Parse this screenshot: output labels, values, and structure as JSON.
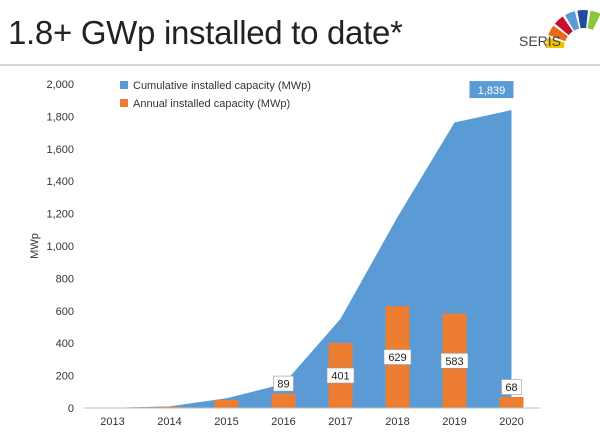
{
  "slide": {
    "title": "1.8+ GWp installed to date*",
    "logo_text": "SERIS",
    "logo_colors": [
      "#f2c300",
      "#e86a12",
      "#c8102e",
      "#5b9bd5",
      "#1f4e9c",
      "#8cc63f"
    ]
  },
  "chart_data": {
    "type": "area+bar",
    "categories": [
      "2013",
      "2014",
      "2015",
      "2016",
      "2017",
      "2018",
      "2019",
      "2020"
    ],
    "ylabel": "MWp",
    "ylim": [
      0,
      2000
    ],
    "yticks": [
      "0",
      "200",
      "400",
      "600",
      "800",
      "1,000",
      "1,200",
      "1,400",
      "1,600",
      "1,800",
      "2,000"
    ],
    "legend": {
      "placement": "top-left",
      "entries": [
        "Cumulative installed capacity (MWp)",
        "Annual installed capacity (MWp)"
      ]
    },
    "series": [
      {
        "name": "Cumulative installed capacity (MWp)",
        "kind": "area",
        "color": "#5b9bd5",
        "values": [
          2,
          10,
          60,
          149,
          550,
          1179,
          1762,
          1839
        ]
      },
      {
        "name": "Annual installed capacity (MWp)",
        "kind": "bar",
        "color": "#ed7d31",
        "values": [
          2,
          8,
          50,
          89,
          401,
          629,
          583,
          68
        ],
        "data_labels": [
          "",
          "",
          "",
          "89",
          "401",
          "629",
          "583",
          "68"
        ]
      }
    ],
    "peak_label": "1,839",
    "gridlines": false
  }
}
